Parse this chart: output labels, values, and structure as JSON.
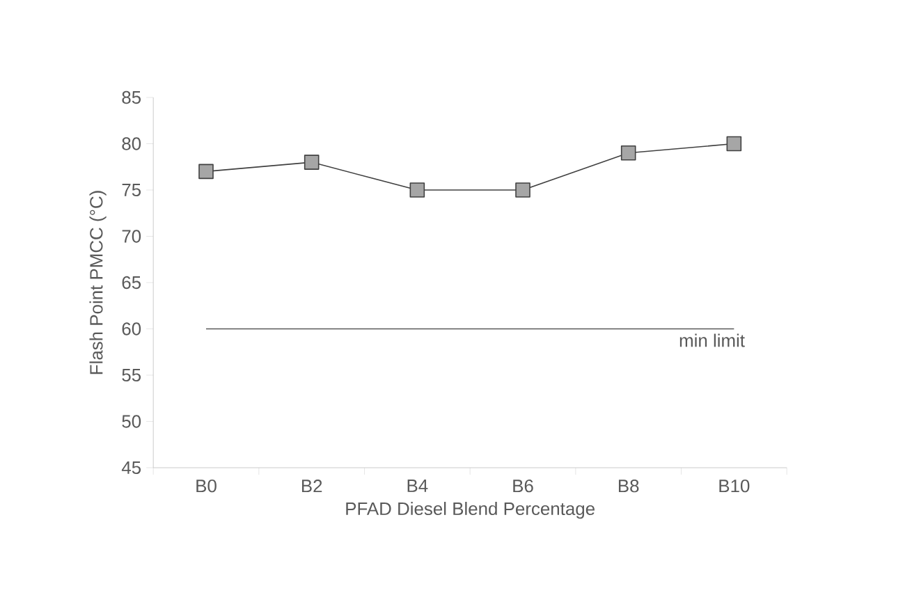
{
  "chart_data": {
    "type": "line",
    "xlabel": "PFAD Diesel Blend Percentage",
    "ylabel": "Flash Point PMCC (°C)",
    "categories": [
      "B0",
      "B2",
      "B4",
      "B6",
      "B8",
      "B10"
    ],
    "series": [
      {
        "color": "#404040",
        "values": [
          77,
          78,
          75,
          75,
          79,
          80
        ]
      }
    ],
    "marker": "square",
    "ylim": [
      45,
      85
    ],
    "yticks": [
      45,
      50,
      55,
      60,
      65,
      70,
      75,
      80,
      85
    ],
    "grid": false,
    "ref_lines": [
      {
        "axis": "y",
        "value": 60,
        "label": "min limit",
        "color": "#595959"
      }
    ]
  }
}
